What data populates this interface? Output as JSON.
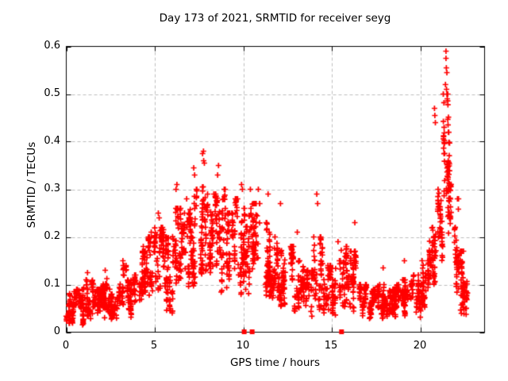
{
  "window": {
    "background_color": "#ffffff"
  },
  "chart_data": {
    "type": "scatter",
    "title": "Day 173 of 2021, SRMTID for receiver seyg",
    "xlabel": "GPS time / hours",
    "ylabel": "SRMTID / TECUs",
    "xlim": [
      0,
      23.63
    ],
    "ylim": [
      0,
      0.6
    ],
    "xticks": [
      0,
      5,
      10,
      15,
      20
    ],
    "yticks": [
      0,
      0.1,
      0.2,
      0.3,
      0.4,
      0.5,
      0.6
    ],
    "xtick_labels": [
      "0",
      "5",
      "10",
      "15",
      "20"
    ],
    "ytick_labels": [
      "0",
      "0.1",
      "0.2",
      "0.3",
      "0.4",
      "0.5",
      "0.6"
    ],
    "grid": true,
    "grid_style": "dashed",
    "grid_color": "#bdbdbd",
    "frame_color": "#000000",
    "marker": "plus",
    "marker_color": "#ff0000",
    "marker_size": 7,
    "series_name": "SRMTID",
    "seed": 20210173,
    "envelope_segments_format": "[hour_start, hour_end, value_min, value_max, n_points]",
    "envelope": [
      [
        0.0,
        0.5,
        0.025,
        0.085,
        65
      ],
      [
        0.5,
        1.0,
        0.025,
        0.09,
        65
      ],
      [
        1.0,
        1.5,
        0.03,
        0.11,
        60
      ],
      [
        1.5,
        2.0,
        0.03,
        0.09,
        60
      ],
      [
        2.0,
        2.5,
        0.04,
        0.12,
        60
      ],
      [
        2.5,
        3.0,
        0.025,
        0.08,
        55
      ],
      [
        3.0,
        3.5,
        0.05,
        0.14,
        55
      ],
      [
        3.5,
        4.0,
        0.04,
        0.12,
        55
      ],
      [
        4.0,
        4.5,
        0.07,
        0.17,
        55
      ],
      [
        4.5,
        5.0,
        0.09,
        0.2,
        60
      ],
      [
        5.0,
        5.5,
        0.09,
        0.22,
        60
      ],
      [
        5.5,
        6.0,
        0.04,
        0.2,
        55
      ],
      [
        6.0,
        6.5,
        0.1,
        0.26,
        60
      ],
      [
        6.5,
        7.0,
        0.11,
        0.25,
        55
      ],
      [
        7.0,
        7.5,
        0.12,
        0.3,
        60
      ],
      [
        7.5,
        8.0,
        0.14,
        0.33,
        60
      ],
      [
        8.0,
        8.5,
        0.13,
        0.29,
        60
      ],
      [
        8.5,
        9.0,
        0.11,
        0.3,
        55
      ],
      [
        9.0,
        9.5,
        0.1,
        0.25,
        50
      ],
      [
        9.5,
        10.0,
        0.09,
        0.28,
        55
      ],
      [
        10.0,
        10.5,
        0.1,
        0.26,
        60
      ],
      [
        10.5,
        11.0,
        0.1,
        0.27,
        55
      ],
      [
        11.0,
        11.5,
        0.09,
        0.23,
        55
      ],
      [
        11.5,
        12.0,
        0.08,
        0.2,
        55
      ],
      [
        12.0,
        12.5,
        0.07,
        0.19,
        55
      ],
      [
        12.5,
        13.0,
        0.05,
        0.18,
        50
      ],
      [
        13.0,
        13.5,
        0.05,
        0.15,
        50
      ],
      [
        13.5,
        14.0,
        0.04,
        0.13,
        50
      ],
      [
        14.0,
        14.5,
        0.06,
        0.2,
        50
      ],
      [
        14.5,
        15.0,
        0.05,
        0.14,
        50
      ],
      [
        15.0,
        15.5,
        0.05,
        0.15,
        50
      ],
      [
        15.5,
        16.0,
        0.06,
        0.18,
        55
      ],
      [
        16.0,
        16.5,
        0.06,
        0.17,
        50
      ],
      [
        16.5,
        17.0,
        0.035,
        0.1,
        50
      ],
      [
        17.0,
        17.5,
        0.03,
        0.09,
        50
      ],
      [
        17.5,
        18.0,
        0.03,
        0.1,
        55
      ],
      [
        18.0,
        18.5,
        0.035,
        0.09,
        55
      ],
      [
        18.5,
        19.0,
        0.04,
        0.1,
        55
      ],
      [
        19.0,
        19.5,
        0.04,
        0.11,
        50
      ],
      [
        19.5,
        20.0,
        0.04,
        0.12,
        50
      ],
      [
        20.0,
        20.5,
        0.05,
        0.15,
        55
      ],
      [
        20.5,
        21.0,
        0.09,
        0.22,
        55
      ],
      [
        21.0,
        21.3,
        0.14,
        0.3,
        40
      ],
      [
        21.3,
        21.6,
        0.22,
        0.5,
        45
      ],
      [
        21.6,
        21.9,
        0.2,
        0.42,
        40
      ],
      [
        21.9,
        22.2,
        0.1,
        0.28,
        40
      ],
      [
        22.2,
        22.45,
        0.05,
        0.17,
        35
      ],
      [
        22.45,
        22.65,
        0.04,
        0.12,
        30
      ]
    ],
    "outliers": [
      [
        1.2,
        0.125
      ],
      [
        2.2,
        0.13
      ],
      [
        3.2,
        0.15
      ],
      [
        4.35,
        0.18
      ],
      [
        4.8,
        0.21
      ],
      [
        5.2,
        0.25
      ],
      [
        5.25,
        0.24
      ],
      [
        6.2,
        0.3
      ],
      [
        6.25,
        0.31
      ],
      [
        6.8,
        0.28
      ],
      [
        7.2,
        0.345
      ],
      [
        7.25,
        0.33
      ],
      [
        7.7,
        0.375
      ],
      [
        7.75,
        0.38
      ],
      [
        7.76,
        0.36
      ],
      [
        7.8,
        0.355
      ],
      [
        8.55,
        0.33
      ],
      [
        8.6,
        0.35
      ],
      [
        9.9,
        0.31
      ],
      [
        9.95,
        0.3
      ],
      [
        10.4,
        0.3
      ],
      [
        10.85,
        0.3
      ],
      [
        11.4,
        0.29
      ],
      [
        12.1,
        0.27
      ],
      [
        13.05,
        0.21
      ],
      [
        14.15,
        0.29
      ],
      [
        14.2,
        0.27
      ],
      [
        15.35,
        0.19
      ],
      [
        16.3,
        0.23
      ],
      [
        17.9,
        0.135
      ],
      [
        19.1,
        0.15
      ],
      [
        20.8,
        0.47
      ],
      [
        20.82,
        0.455
      ],
      [
        20.85,
        0.44
      ],
      [
        21.42,
        0.52
      ],
      [
        21.45,
        0.59
      ],
      [
        21.45,
        0.575
      ],
      [
        21.47,
        0.555
      ],
      [
        21.5,
        0.545
      ],
      [
        21.48,
        0.51
      ],
      [
        21.5,
        0.5
      ],
      [
        21.52,
        0.49
      ]
    ],
    "axis_markers": {
      "description": "small filled squares sitting on the x-axis",
      "hours": [
        10.05,
        10.5,
        15.55
      ],
      "color": "#ff0000"
    }
  }
}
